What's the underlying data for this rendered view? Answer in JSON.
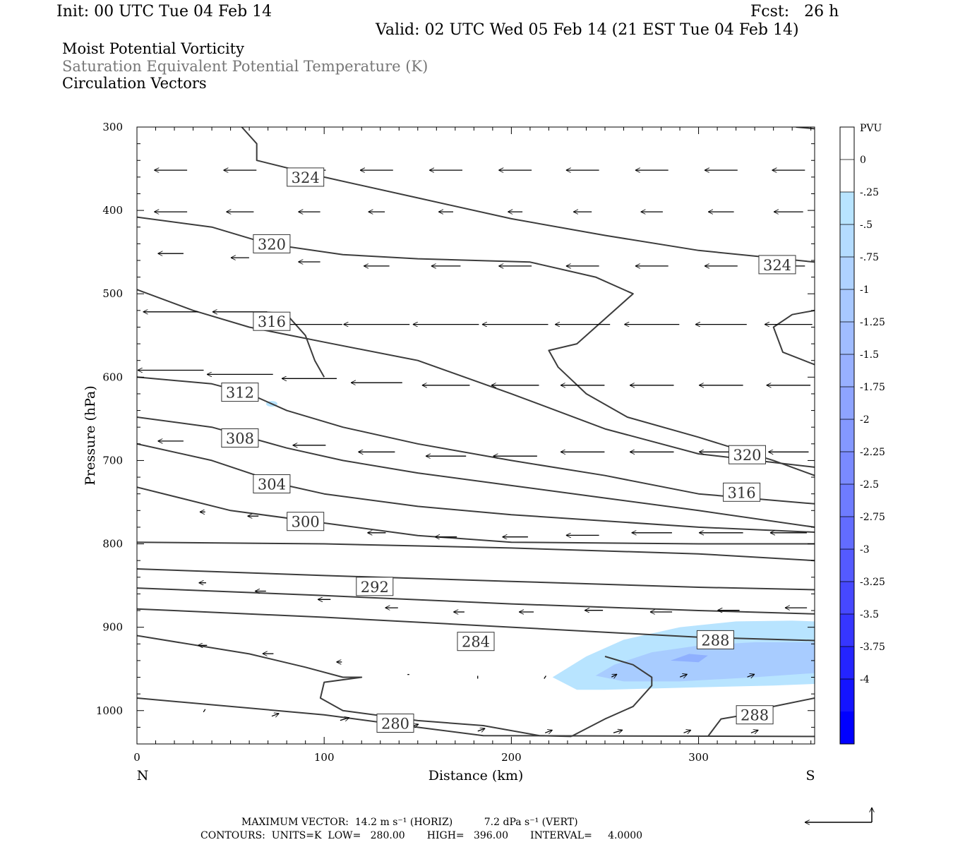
{
  "header": {
    "init": "Init: 00 UTC Tue 04 Feb 14",
    "fcst": "Fcst:   26 h",
    "valid": "Valid: 02 UTC Wed 05 Feb 14 (21 EST Tue 04 Feb 14)",
    "field1": "Moist Potential Vorticity",
    "field2": "Saturation Equivalent Potential Temperature (K)",
    "field3": "Circulation Vectors"
  },
  "footer": {
    "max_vector": "MAXIMUM VECTOR:  14.2 m s⁻¹ (HORIZ)          7.2 dPa s⁻¹ (VERT)",
    "contours": "CONTOURS:  UNITS=K  LOW=   280.00       HIGH=   396.00       INTERVAL=     4.0000"
  },
  "colors": {
    "contour": "#3c3c3c",
    "pv_light": "#b8e4ff",
    "pv_mid": "#a8ccff",
    "pv_dark": "#8fb0ff"
  },
  "chart_data": {
    "type": "cross-section",
    "xlabel": "Distance (km)",
    "ylabel": "Pressure (hPa)",
    "x_end_labels": [
      "N",
      "S"
    ],
    "xlim": [
      0,
      362
    ],
    "ylim": [
      1040,
      300
    ],
    "x_ticks": [
      0,
      100,
      200,
      300
    ],
    "y_ticks": [
      300,
      400,
      500,
      600,
      700,
      800,
      900,
      1000
    ],
    "colorbar": {
      "title": "PVU",
      "levels": [
        "0",
        "-.25",
        "-.5",
        "-.75",
        "-1",
        "-1.25",
        "-1.5",
        "-1.75",
        "-2",
        "-2.25",
        "-2.5",
        "-2.75",
        "-3",
        "-3.25",
        "-3.5",
        "-3.75",
        "-4"
      ],
      "colors": [
        "#ffffff",
        "#ffffff",
        "#b8e4ff",
        "#b4dcff",
        "#afd2ff",
        "#a8c8ff",
        "#a0bcff",
        "#98b0ff",
        "#8ea4ff",
        "#8498ff",
        "#7a8aff",
        "#6e7cff",
        "#626cff",
        "#545aff",
        "#4648ff",
        "#3636ff",
        "#2424ff",
        "#1414ff",
        "#0000ff"
      ]
    },
    "contour_labels": [
      {
        "text": "324",
        "x": 90,
        "p": 360
      },
      {
        "text": "320",
        "x": 72,
        "p": 440
      },
      {
        "text": "324",
        "x": 342,
        "p": 465
      },
      {
        "text": "316",
        "x": 72,
        "p": 533
      },
      {
        "text": "312",
        "x": 55,
        "p": 618
      },
      {
        "text": "308",
        "x": 55,
        "p": 673
      },
      {
        "text": "320",
        "x": 326,
        "p": 693
      },
      {
        "text": "304",
        "x": 72,
        "p": 728
      },
      {
        "text": "316",
        "x": 323,
        "p": 738
      },
      {
        "text": "300",
        "x": 90,
        "p": 773
      },
      {
        "text": "292",
        "x": 127,
        "p": 851
      },
      {
        "text": "284",
        "x": 181,
        "p": 917
      },
      {
        "text": "288",
        "x": 309,
        "p": 915
      },
      {
        "text": "280",
        "x": 138,
        "p": 1015
      },
      {
        "text": "288",
        "x": 330,
        "p": 1005
      }
    ],
    "contours": [
      [
        [
          0,
          985
        ],
        [
          100,
          1005
        ],
        [
          150,
          1020
        ],
        [
          185,
          1030
        ],
        [
          362,
          1031
        ]
      ],
      [
        [
          0,
          910
        ],
        [
          60,
          932
        ],
        [
          90,
          948
        ],
        [
          110,
          960
        ],
        [
          120,
          960
        ],
        [
          100,
          966
        ],
        [
          98,
          985
        ],
        [
          110,
          1000
        ],
        [
          150,
          1012
        ],
        [
          185,
          1018
        ],
        [
          215,
          1030
        ],
        [
          232,
          1031
        ]
      ],
      [
        [
          0,
          878
        ],
        [
          100,
          888
        ],
        [
          200,
          900
        ],
        [
          300,
          912
        ],
        [
          362,
          916
        ]
      ],
      [
        [
          0,
          853
        ],
        [
          100,
          862
        ],
        [
          200,
          872
        ],
        [
          300,
          880
        ],
        [
          362,
          884
        ]
      ],
      [
        [
          0,
          830
        ],
        [
          100,
          838
        ],
        [
          200,
          845
        ],
        [
          300,
          852
        ],
        [
          362,
          855
        ]
      ],
      [
        [
          0,
          798
        ],
        [
          100,
          800
        ],
        [
          200,
          805
        ],
        [
          300,
          812
        ],
        [
          362,
          820
        ]
      ],
      [
        [
          0,
          732
        ],
        [
          50,
          760
        ],
        [
          100,
          775
        ],
        [
          150,
          790
        ],
        [
          200,
          798
        ],
        [
          300,
          800
        ],
        [
          362,
          800
        ]
      ],
      [
        [
          0,
          680
        ],
        [
          40,
          700
        ],
        [
          80,
          730
        ],
        [
          100,
          740
        ],
        [
          150,
          755
        ],
        [
          200,
          765
        ],
        [
          300,
          780
        ],
        [
          362,
          786
        ]
      ],
      [
        [
          0,
          648
        ],
        [
          40,
          660
        ],
        [
          80,
          685
        ],
        [
          110,
          700
        ],
        [
          150,
          715
        ],
        [
          200,
          730
        ],
        [
          250,
          745
        ],
        [
          300,
          760
        ],
        [
          362,
          780
        ]
      ],
      [
        [
          0,
          600
        ],
        [
          40,
          608
        ],
        [
          60,
          620
        ],
        [
          80,
          640
        ],
        [
          110,
          660
        ],
        [
          150,
          680
        ],
        [
          200,
          700
        ],
        [
          250,
          718
        ],
        [
          300,
          740
        ],
        [
          362,
          752
        ]
      ],
      [
        [
          0,
          495
        ],
        [
          30,
          520
        ],
        [
          60,
          540
        ],
        [
          100,
          558
        ],
        [
          150,
          580
        ],
        [
          200,
          620
        ],
        [
          250,
          662
        ],
        [
          300,
          692
        ],
        [
          362,
          708
        ]
      ],
      [
        [
          0,
          408
        ],
        [
          40,
          420
        ],
        [
          70,
          440
        ],
        [
          110,
          453
        ],
        [
          150,
          458
        ],
        [
          210,
          462
        ],
        [
          245,
          480
        ],
        [
          265,
          500
        ],
        [
          235,
          560
        ],
        [
          220,
          568
        ],
        [
          225,
          588
        ],
        [
          240,
          620
        ],
        [
          262,
          648
        ],
        [
          300,
          672
        ],
        [
          340,
          700
        ],
        [
          362,
          718
        ]
      ],
      [
        [
          56,
          300
        ],
        [
          64,
          320
        ],
        [
          64,
          340
        ],
        [
          100,
          360
        ],
        [
          150,
          385
        ],
        [
          200,
          410
        ],
        [
          250,
          430
        ],
        [
          300,
          448
        ],
        [
          362,
          462
        ]
      ],
      [
        [
          100,
          600
        ],
        [
          95,
          580
        ],
        [
          90,
          550
        ],
        [
          80,
          525
        ],
        [
          70,
          522
        ]
      ],
      [
        [
          362,
          520
        ],
        [
          350,
          525
        ],
        [
          340,
          540
        ],
        [
          345,
          570
        ],
        [
          362,
          585
        ]
      ],
      [
        [
          362,
          985
        ],
        [
          340,
          995
        ],
        [
          325,
          1005
        ],
        [
          312,
          1010
        ],
        [
          305,
          1031
        ]
      ],
      [
        [
          232,
          1031
        ],
        [
          250,
          1010
        ],
        [
          265,
          995
        ],
        [
          275,
          970
        ],
        [
          275,
          960
        ],
        [
          265,
          945
        ],
        [
          250,
          935
        ]
      ],
      [
        [
          352,
          300
        ],
        [
          362,
          302
        ]
      ]
    ],
    "pv_shading": [
      {
        "level": -0.25,
        "points": [
          [
            222,
            960
          ],
          [
            240,
            935
          ],
          [
            260,
            915
          ],
          [
            290,
            900
          ],
          [
            320,
            893
          ],
          [
            350,
            892
          ],
          [
            362,
            893
          ],
          [
            362,
            968
          ],
          [
            340,
            970
          ],
          [
            300,
            972
          ],
          [
            250,
            975
          ],
          [
            235,
            975
          ]
        ]
      },
      {
        "level": -0.5,
        "points": [
          [
            245,
            958
          ],
          [
            255,
            945
          ],
          [
            275,
            930
          ],
          [
            300,
            922
          ],
          [
            330,
            918
          ],
          [
            362,
            918
          ],
          [
            362,
            955
          ],
          [
            330,
            960
          ],
          [
            290,
            965
          ],
          [
            260,
            965
          ]
        ]
      },
      {
        "level": -0.75,
        "points": [
          [
            285,
            940
          ],
          [
            295,
            932
          ],
          [
            305,
            934
          ],
          [
            300,
            942
          ]
        ]
      }
    ],
    "vectors": [
      {
        "x": 18,
        "p": 350,
        "u": -18,
        "w": 0
      },
      {
        "x": 55,
        "p": 350,
        "u": -18,
        "w": 0
      },
      {
        "x": 92,
        "p": 350,
        "u": -18,
        "w": 0
      },
      {
        "x": 128,
        "p": 350,
        "u": -18,
        "w": 0
      },
      {
        "x": 165,
        "p": 350,
        "u": -18,
        "w": 0
      },
      {
        "x": 202,
        "p": 350,
        "u": -18,
        "w": 0
      },
      {
        "x": 238,
        "p": 350,
        "u": -18,
        "w": 0
      },
      {
        "x": 275,
        "p": 350,
        "u": -18,
        "w": 0
      },
      {
        "x": 312,
        "p": 350,
        "u": -18,
        "w": 0
      },
      {
        "x": 348,
        "p": 350,
        "u": -18,
        "w": 0
      },
      {
        "x": 18,
        "p": 400,
        "u": -18,
        "w": 0
      },
      {
        "x": 55,
        "p": 400,
        "u": -15,
        "w": 0
      },
      {
        "x": 92,
        "p": 400,
        "u": -12,
        "w": 0
      },
      {
        "x": 128,
        "p": 400,
        "u": -9,
        "w": 0
      },
      {
        "x": 165,
        "p": 400,
        "u": -8,
        "w": 0
      },
      {
        "x": 202,
        "p": 400,
        "u": -8,
        "w": 0
      },
      {
        "x": 238,
        "p": 400,
        "u": -10,
        "w": 0
      },
      {
        "x": 275,
        "p": 400,
        "u": -12,
        "w": 0
      },
      {
        "x": 312,
        "p": 400,
        "u": -14,
        "w": 0
      },
      {
        "x": 348,
        "p": 400,
        "u": -16,
        "w": 0
      },
      {
        "x": 18,
        "p": 450,
        "u": -14,
        "w": 0
      },
      {
        "x": 55,
        "p": 455,
        "u": -10,
        "w": 0
      },
      {
        "x": 92,
        "p": 460,
        "u": -12,
        "w": 0
      },
      {
        "x": 128,
        "p": 465,
        "u": -14,
        "w": 0
      },
      {
        "x": 165,
        "p": 465,
        "u": -16,
        "w": 0
      },
      {
        "x": 202,
        "p": 465,
        "u": -18,
        "w": 0
      },
      {
        "x": 238,
        "p": 465,
        "u": -18,
        "w": 0
      },
      {
        "x": 275,
        "p": 465,
        "u": -18,
        "w": 0
      },
      {
        "x": 312,
        "p": 465,
        "u": -18,
        "w": 0
      },
      {
        "x": 348,
        "p": 465,
        "u": -18,
        "w": 0
      },
      {
        "x": 18,
        "p": 520,
        "u": -30,
        "w": 0
      },
      {
        "x": 55,
        "p": 520,
        "u": -30,
        "w": 0
      },
      {
        "x": 92,
        "p": 535,
        "u": -36,
        "w": 0
      },
      {
        "x": 128,
        "p": 535,
        "u": -36,
        "w": 0
      },
      {
        "x": 165,
        "p": 535,
        "u": -36,
        "w": 0
      },
      {
        "x": 202,
        "p": 535,
        "u": -36,
        "w": 0
      },
      {
        "x": 238,
        "p": 535,
        "u": -30,
        "w": 0
      },
      {
        "x": 275,
        "p": 535,
        "u": -30,
        "w": 0
      },
      {
        "x": 312,
        "p": 535,
        "u": -28,
        "w": 0
      },
      {
        "x": 348,
        "p": 535,
        "u": -26,
        "w": 0
      },
      {
        "x": 18,
        "p": 590,
        "u": -36,
        "w": 0
      },
      {
        "x": 55,
        "p": 595,
        "u": -36,
        "w": 0
      },
      {
        "x": 92,
        "p": 600,
        "u": -30,
        "w": 0
      },
      {
        "x": 128,
        "p": 605,
        "u": -28,
        "w": 0
      },
      {
        "x": 165,
        "p": 608,
        "u": -26,
        "w": 0
      },
      {
        "x": 202,
        "p": 608,
        "u": -26,
        "w": 0
      },
      {
        "x": 238,
        "p": 608,
        "u": -24,
        "w": 0
      },
      {
        "x": 275,
        "p": 608,
        "u": -24,
        "w": 0
      },
      {
        "x": 312,
        "p": 608,
        "u": -24,
        "w": 0
      },
      {
        "x": 348,
        "p": 608,
        "u": -24,
        "w": 0
      },
      {
        "x": 18,
        "p": 675,
        "u": -14,
        "w": 0
      },
      {
        "x": 55,
        "p": 675,
        "u": -14,
        "w": 0
      },
      {
        "x": 92,
        "p": 680,
        "u": -18,
        "w": 0
      },
      {
        "x": 128,
        "p": 688,
        "u": -20,
        "w": 0
      },
      {
        "x": 165,
        "p": 693,
        "u": -22,
        "w": 0
      },
      {
        "x": 202,
        "p": 693,
        "u": -24,
        "w": 0
      },
      {
        "x": 238,
        "p": 688,
        "u": -24,
        "w": 0
      },
      {
        "x": 275,
        "p": 688,
        "u": -24,
        "w": 0
      },
      {
        "x": 312,
        "p": 688,
        "u": -24,
        "w": 0
      },
      {
        "x": 348,
        "p": 688,
        "u": -22,
        "w": 0
      },
      {
        "x": 35,
        "p": 760,
        "u": -3,
        "w": 0
      },
      {
        "x": 62,
        "p": 765,
        "u": -6,
        "w": 0
      },
      {
        "x": 92,
        "p": 770,
        "u": -10,
        "w": 0
      },
      {
        "x": 128,
        "p": 785,
        "u": -10,
        "w": 0
      },
      {
        "x": 165,
        "p": 790,
        "u": -12,
        "w": 0
      },
      {
        "x": 202,
        "p": 790,
        "u": -14,
        "w": 0
      },
      {
        "x": 238,
        "p": 788,
        "u": -18,
        "w": 0
      },
      {
        "x": 275,
        "p": 785,
        "u": -22,
        "w": 0
      },
      {
        "x": 312,
        "p": 785,
        "u": -24,
        "w": 0
      },
      {
        "x": 348,
        "p": 785,
        "u": -20,
        "w": 0
      },
      {
        "x": 35,
        "p": 845,
        "u": -4,
        "w": 0
      },
      {
        "x": 66,
        "p": 855,
        "u": -6,
        "w": 0
      },
      {
        "x": 100,
        "p": 865,
        "u": -7,
        "w": 0
      },
      {
        "x": 136,
        "p": 875,
        "u": -7,
        "w": 0
      },
      {
        "x": 172,
        "p": 880,
        "u": -6,
        "w": 0
      },
      {
        "x": 208,
        "p": 880,
        "u": -8,
        "w": 0
      },
      {
        "x": 244,
        "p": 878,
        "u": -10,
        "w": 0
      },
      {
        "x": 280,
        "p": 880,
        "u": -12,
        "w": 0
      },
      {
        "x": 316,
        "p": 878,
        "u": -12,
        "w": 0
      },
      {
        "x": 352,
        "p": 875,
        "u": -12,
        "w": 0
      },
      {
        "x": 35,
        "p": 920,
        "u": -5,
        "w": 0
      },
      {
        "x": 70,
        "p": 930,
        "u": -6,
        "w": 0
      },
      {
        "x": 108,
        "p": 940,
        "u": -3,
        "w": 0
      },
      {
        "x": 145,
        "p": 955,
        "u": -1,
        "w": 0
      },
      {
        "x": 182,
        "p": 960,
        "u": 0,
        "w": 0
      },
      {
        "x": 218,
        "p": 960,
        "u": 1,
        "w": 0
      },
      {
        "x": 255,
        "p": 958,
        "u": 3,
        "w": 0
      },
      {
        "x": 292,
        "p": 958,
        "u": 4,
        "w": 0
      },
      {
        "x": 328,
        "p": 958,
        "u": 4,
        "w": 0
      },
      {
        "x": 36,
        "p": 1000,
        "u": 1,
        "w": 0
      },
      {
        "x": 74,
        "p": 1005,
        "u": 4,
        "w": 0
      },
      {
        "x": 111,
        "p": 1010,
        "u": 5,
        "w": 0
      },
      {
        "x": 148,
        "p": 1018,
        "u": 5,
        "w": 0
      },
      {
        "x": 184,
        "p": 1023,
        "u": 4,
        "w": 0
      },
      {
        "x": 220,
        "p": 1025,
        "u": 4,
        "w": 0
      },
      {
        "x": 257,
        "p": 1025,
        "u": 5,
        "w": 0
      },
      {
        "x": 294,
        "p": 1025,
        "u": 4,
        "w": 0
      },
      {
        "x": 330,
        "p": 1025,
        "u": 4,
        "w": 0
      }
    ]
  }
}
